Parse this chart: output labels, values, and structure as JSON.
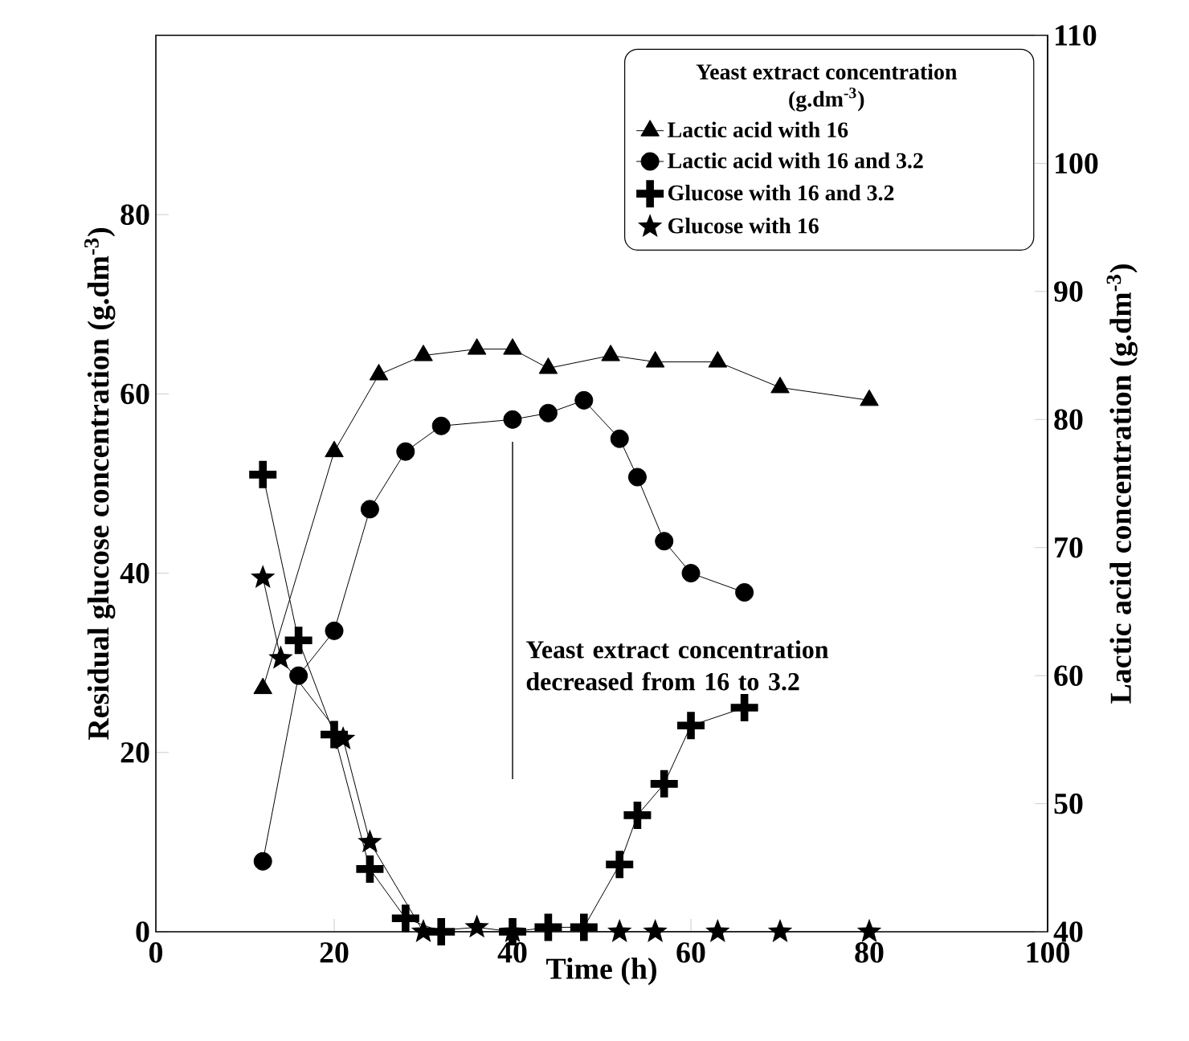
{
  "chart_data": {
    "type": "line",
    "xlabel": "Time (h)",
    "ylabel": "Residual glucose concentration (g.dm$^{-3}$)",
    "y2label": "Lactic acid concentration (g.dm$^{-3}$)",
    "legend_title": "Yeast extract concentration (g.dm$^{-3}$)",
    "legend": "top right",
    "xlim": [
      0,
      100
    ],
    "xticks": [
      0,
      20,
      40,
      60,
      80,
      100
    ],
    "ylim": [
      0,
      100
    ],
    "yticks": [
      0,
      20,
      40,
      60,
      80
    ],
    "y2lim": [
      40,
      110
    ],
    "y2ticks": [
      40,
      50,
      60,
      70,
      80,
      90,
      100,
      110
    ],
    "ref_lines": [
      {
        "axis": "x",
        "value": 40,
        "label": "Yeast extract concentration decreased from 16 to 3.2"
      }
    ],
    "series": [
      {
        "name": "Lactic acid with 16",
        "color": "#000000",
        "axis": "y2",
        "marker": "triangle",
        "x": [
          12,
          20,
          25,
          30,
          36,
          40,
          44,
          51,
          56,
          63,
          70,
          80
        ],
        "values": [
          59,
          77.5,
          83.5,
          85,
          85.5,
          85.5,
          84,
          85,
          84.5,
          84.5,
          82.5,
          81.5
        ]
      },
      {
        "name": "Lactic acid with 16 and 3.2",
        "color": "#000000",
        "axis": "y2",
        "marker": "circle",
        "x": [
          12,
          16,
          20,
          24,
          28,
          32,
          40,
          44,
          48,
          52,
          54,
          57,
          60,
          66
        ],
        "values": [
          45.5,
          60,
          63.5,
          73,
          77.5,
          79.5,
          80,
          80.5,
          81.5,
          78.5,
          75.5,
          70.5,
          68,
          66.5
        ]
      },
      {
        "name": "Glucose with 16 and 3.2",
        "color": "#000000",
        "axis": "y",
        "marker": "cross",
        "x": [
          12,
          16,
          20,
          24,
          28,
          32,
          40,
          44,
          48,
          52,
          54,
          57,
          60,
          66
        ],
        "values": [
          51,
          32.5,
          22,
          7,
          1.5,
          0,
          0,
          0.5,
          0.5,
          7.5,
          13,
          16.5,
          23,
          25
        ]
      },
      {
        "name": "Glucose with 16",
        "color": "#000000",
        "axis": "y",
        "marker": "star",
        "x": [
          12,
          14,
          21,
          24,
          30,
          36,
          40,
          52,
          56,
          63,
          70,
          80
        ],
        "values": [
          39.5,
          30.5,
          21.5,
          10,
          0,
          0.5,
          0,
          0,
          0,
          0,
          0,
          0
        ]
      }
    ]
  }
}
